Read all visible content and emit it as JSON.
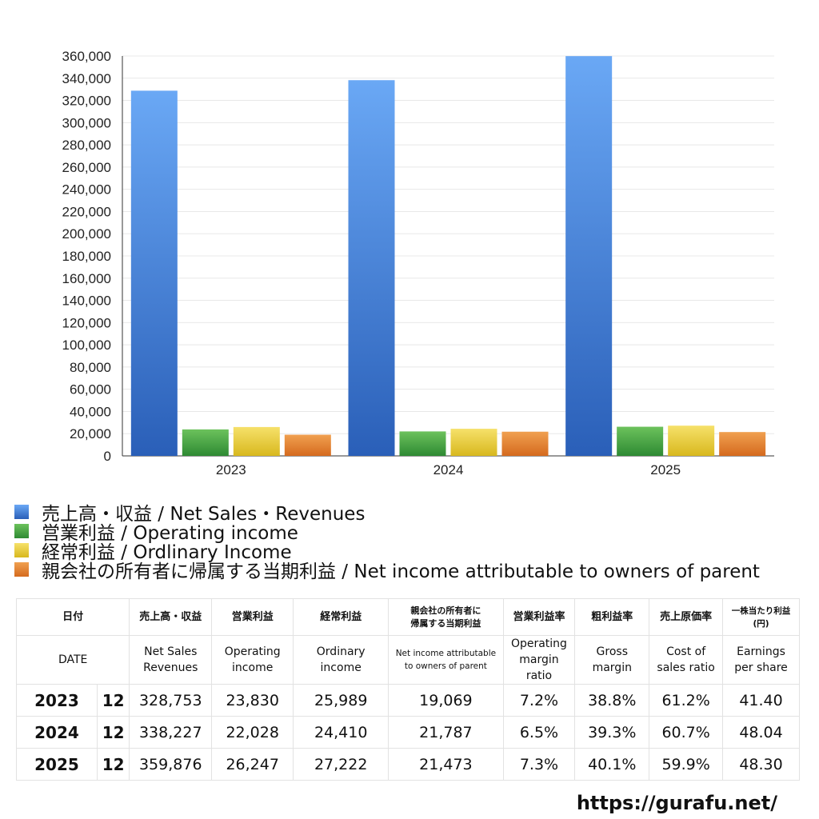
{
  "chart_data": {
    "type": "bar",
    "categories": [
      "2023",
      "2024",
      "2025"
    ],
    "series": [
      {
        "name": "売上高・収益 / Net Sales・Revenues",
        "values": [
          328753,
          338227,
          359876
        ],
        "color": "#3b78d8"
      },
      {
        "name": "営業利益 / Operating income",
        "values": [
          23830,
          22028,
          26247
        ],
        "color": "#43a047"
      },
      {
        "name": "経常利益 / Ordlinary Income",
        "values": [
          25989,
          24410,
          27222
        ],
        "color": "#e6c531"
      },
      {
        "name": "親会社の所有者に帰属する当期利益 / Net income attributable to owners of parent",
        "values": [
          19069,
          21787,
          21473
        ],
        "color": "#e07b2c"
      }
    ],
    "ylim": [
      0,
      360000
    ],
    "yticks": [
      "0",
      "20,000",
      "40,000",
      "60,000",
      "80,000",
      "100,000",
      "120,000",
      "140,000",
      "160,000",
      "180,000",
      "200,000",
      "220,000",
      "240,000",
      "260,000",
      "280,000",
      "300,000",
      "320,000",
      "340,000",
      "360,000"
    ],
    "grid": true,
    "legend": "bottom"
  },
  "table": {
    "header_jp": [
      "日付",
      "売上高・収益",
      "営業利益",
      "経常利益",
      "親会社の所有者に",
      "帰属する当期利益",
      "営業利益率",
      "粗利益率",
      "売上原価率",
      "一株当たり利益",
      "(円)"
    ],
    "header_en": [
      "DATE",
      "Net Sales",
      "Revenues",
      "Operating",
      "income",
      "Ordinary",
      "income",
      "Net income attributable",
      "to owners of parent",
      "Operating",
      "margin",
      "ratio",
      "Gross",
      "margin",
      "Cost of",
      "sales ratio",
      "Earnings",
      "per share"
    ],
    "rows": [
      {
        "year": "2023",
        "month": "12",
        "sales": "328,753",
        "op": "23,830",
        "ord": "25,989",
        "net": "19,069",
        "opm": "7.2%",
        "gm": "38.8%",
        "cost": "61.2%",
        "eps": "41.40"
      },
      {
        "year": "2024",
        "month": "12",
        "sales": "338,227",
        "op": "22,028",
        "ord": "24,410",
        "net": "21,787",
        "opm": "6.5%",
        "gm": "39.3%",
        "cost": "60.7%",
        "eps": "48.04"
      },
      {
        "year": "2025",
        "month": "12",
        "sales": "359,876",
        "op": "26,247",
        "ord": "27,222",
        "net": "21,473",
        "opm": "7.3%",
        "gm": "40.1%",
        "cost": "59.9%",
        "eps": "48.30"
      }
    ]
  },
  "source": "https://gurafu.net/"
}
